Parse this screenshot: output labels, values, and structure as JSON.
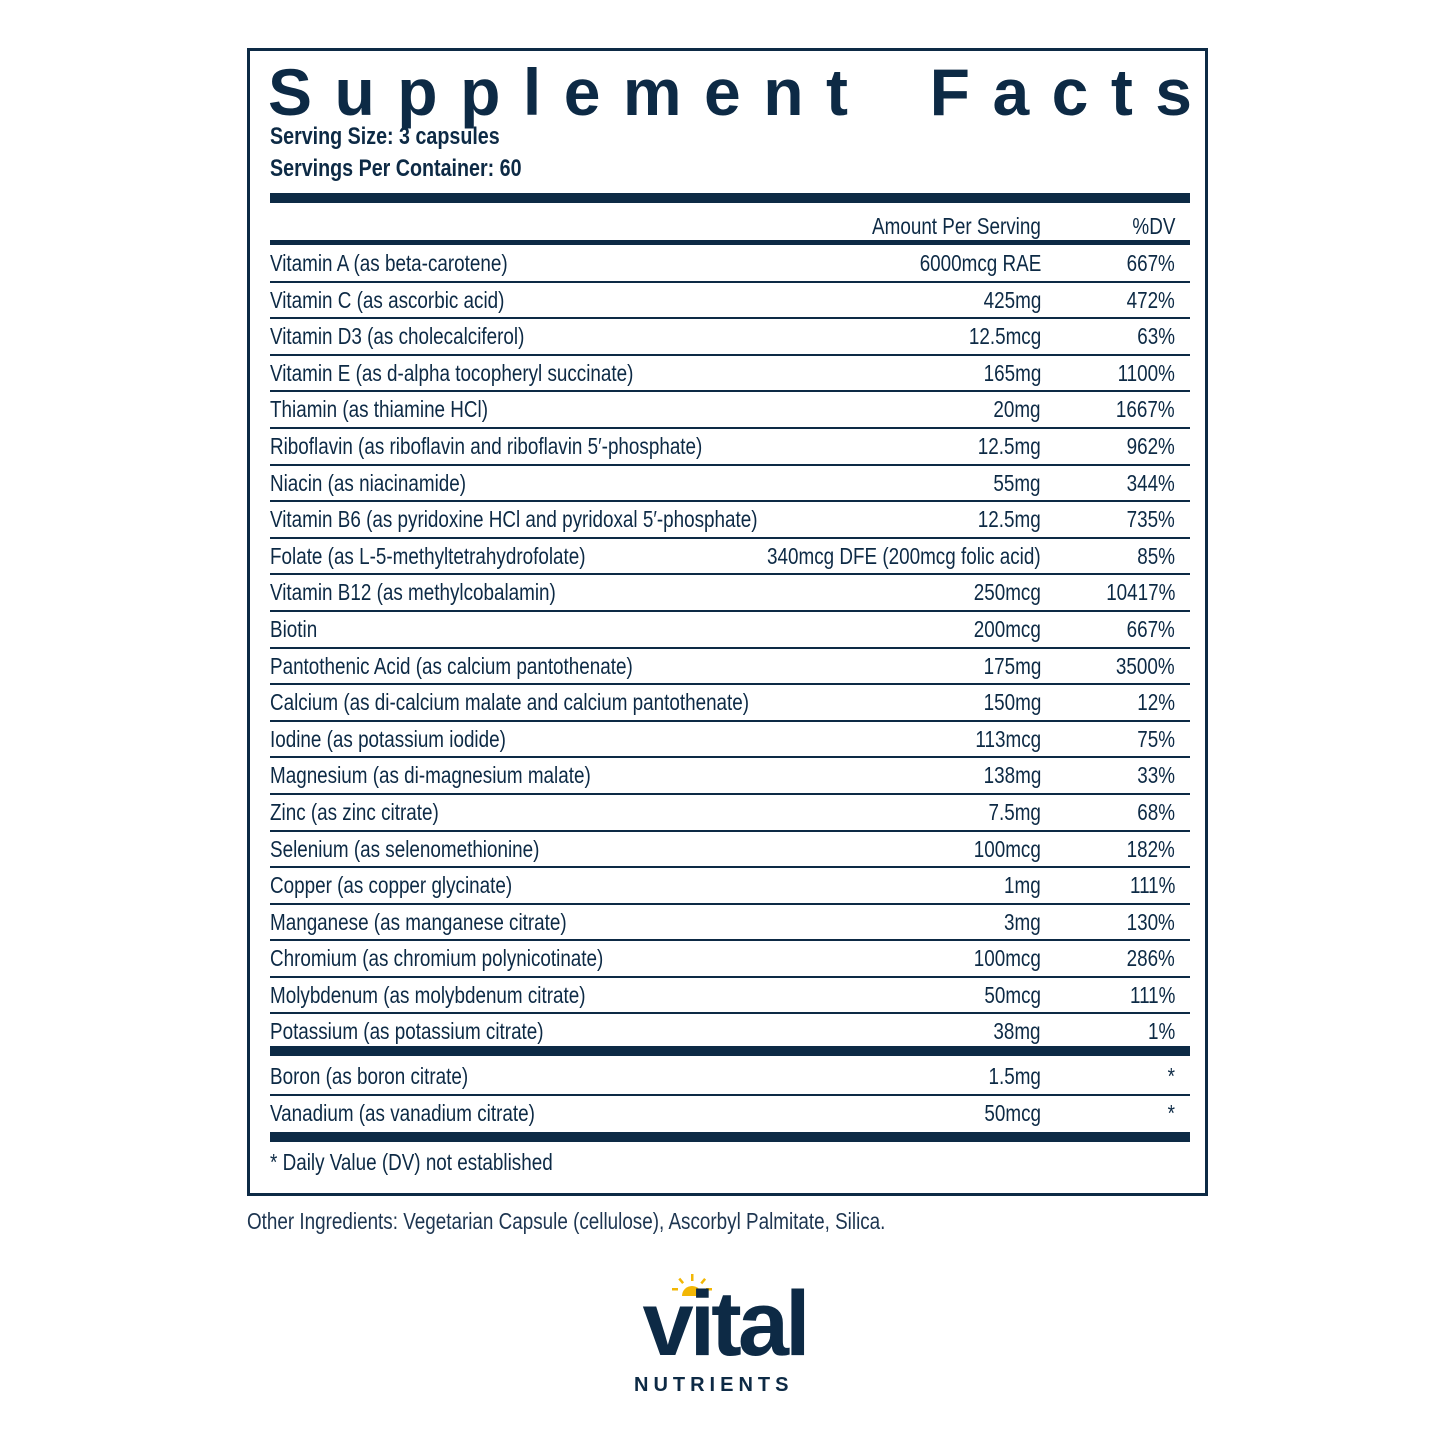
{
  "panel": {
    "title": "Supplement Facts",
    "title_words": [
      "S",
      "u",
      "p",
      "p",
      "l",
      "e",
      "m",
      "e",
      "n",
      "t",
      " ",
      "F",
      "a",
      "c",
      "t",
      "s"
    ],
    "serving_size": "Serving Size: 3 capsules",
    "servings_per_container": "Servings Per Container: 60",
    "columns": {
      "amount": "Amount Per Serving",
      "dv": "%DV"
    },
    "nutrients": [
      {
        "name": "Vitamin A (as beta-carotene)",
        "amount": "6000mcg RAE",
        "dv": "667%"
      },
      {
        "name": "Vitamin C (as ascorbic acid)",
        "amount": "425mg",
        "dv": "472%"
      },
      {
        "name": "Vitamin D3 (as cholecalciferol)",
        "amount": "12.5mcg",
        "dv": "63%"
      },
      {
        "name": "Vitamin E (as d-alpha tocopheryl succinate)",
        "amount": "165mg",
        "dv": "1100%"
      },
      {
        "name": "Thiamin (as thiamine HCl)",
        "amount": "20mg",
        "dv": "1667%"
      },
      {
        "name": "Riboflavin (as riboflavin and riboflavin 5′-phosphate)",
        "amount": "12.5mg",
        "dv": "962%"
      },
      {
        "name": "Niacin (as niacinamide)",
        "amount": "55mg",
        "dv": "344%"
      },
      {
        "name": "Vitamin B6 (as pyridoxine HCl and pyridoxal 5′-phosphate)",
        "amount": "12.5mg",
        "dv": "735%"
      },
      {
        "name": "Folate (as L-5-methyltetrahydrofolate)",
        "amount": "340mcg DFE (200mcg folic acid)",
        "dv": "85%"
      },
      {
        "name": "Vitamin B12 (as methylcobalamin)",
        "amount": "250mcg",
        "dv": "10417%"
      },
      {
        "name": "Biotin",
        "amount": "200mcg",
        "dv": "667%"
      },
      {
        "name": "Pantothenic Acid (as calcium pantothenate)",
        "amount": "175mg",
        "dv": "3500%"
      },
      {
        "name": "Calcium (as di-calcium malate and calcium pantothenate)",
        "amount": "150mg",
        "dv": "12%"
      },
      {
        "name": "Iodine (as potassium iodide)",
        "amount": "113mcg",
        "dv": "75%"
      },
      {
        "name": "Magnesium (as di-magnesium malate)",
        "amount": "138mg",
        "dv": "33%"
      },
      {
        "name": "Zinc (as zinc citrate)",
        "amount": "7.5mg",
        "dv": "68%"
      },
      {
        "name": "Selenium (as selenomethionine)",
        "amount": "100mcg",
        "dv": "182%"
      },
      {
        "name": "Copper (as copper glycinate)",
        "amount": "1mg",
        "dv": "111%"
      },
      {
        "name": "Manganese (as manganese citrate)",
        "amount": "3mg",
        "dv": "130%"
      },
      {
        "name": "Chromium (as chromium polynicotinate)",
        "amount": "100mcg",
        "dv": "286%"
      },
      {
        "name": "Molybdenum (as molybdenum citrate)",
        "amount": "50mcg",
        "dv": "111%"
      },
      {
        "name": "Potassium (as potassium citrate)",
        "amount": "38mg",
        "dv": "1%"
      }
    ],
    "other_nutrients": [
      {
        "name": "Boron (as boron citrate)",
        "amount": "1.5mg",
        "dv": "*"
      },
      {
        "name": "Vanadium (as vanadium citrate)",
        "amount": "50mcg",
        "dv": "*"
      }
    ],
    "footnote": "* Daily Value (DV) not established"
  },
  "other_ingredients": "Other Ingredients: Vegetarian Capsule (cellulose), Ascorbyl Palmitate, Silica.",
  "brand": {
    "name": "vital",
    "subtitle": "NUTRIENTS",
    "icon": "sun-icon",
    "colors": {
      "primary": "#0d2a45",
      "accent": "#f2b705"
    }
  }
}
